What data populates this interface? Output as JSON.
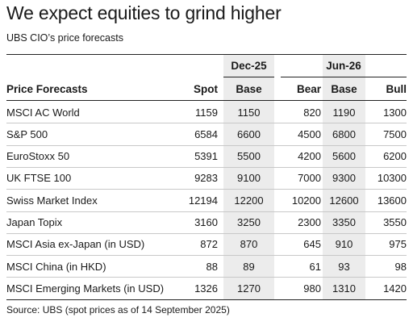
{
  "title": "We expect equities to grind higher",
  "subtitle": "UBS CIO’s price forecasts",
  "table": {
    "groups": {
      "dec25": "Dec-25",
      "jun26": "Jun-26"
    },
    "headers": {
      "name": "Price Forecasts",
      "spot": "Spot",
      "base": "Base",
      "bear": "Bear",
      "base2": "Base",
      "bull": "Bull"
    },
    "rows": [
      {
        "name": "MSCI AC World",
        "spot": "1159",
        "base": "1150",
        "bear": "820",
        "base2": "1190",
        "bull": "1300"
      },
      {
        "name": "S&P 500",
        "spot": "6584",
        "base": "6600",
        "bear": "4500",
        "base2": "6800",
        "bull": "7500"
      },
      {
        "name": "EuroStoxx 50",
        "spot": "5391",
        "base": "5500",
        "bear": "4200",
        "base2": "5600",
        "bull": "6200"
      },
      {
        "name": "UK FTSE 100",
        "spot": "9283",
        "base": "9100",
        "bear": "7000",
        "base2": "9300",
        "bull": "10300"
      },
      {
        "name": "Swiss Market Index",
        "spot": "12194",
        "base": "12200",
        "bear": "10200",
        "base2": "12600",
        "bull": "13600"
      },
      {
        "name": "Japan Topix",
        "spot": "3160",
        "base": "3250",
        "bear": "2300",
        "base2": "3350",
        "bull": "3550"
      },
      {
        "name": "MSCI Asia ex-Japan (in USD)",
        "spot": "872",
        "base": "870",
        "bear": "645",
        "base2": "910",
        "bull": "975"
      },
      {
        "name": "MSCI China (in HKD)",
        "spot": "88",
        "base": "89",
        "bear": "61",
        "base2": "93",
        "bull": "98"
      },
      {
        "name": "MSCI Emerging Markets (in USD)",
        "spot": "1326",
        "base": "1270",
        "bear": "980",
        "base2": "1310",
        "bull": "1420"
      }
    ]
  },
  "source": "Source: UBS (spot prices as of 14 September 2025)",
  "colors": {
    "shade": "#ececec",
    "text": "#1a1a1a",
    "rule": "#222222",
    "row_rule": "#c8c8c8"
  }
}
